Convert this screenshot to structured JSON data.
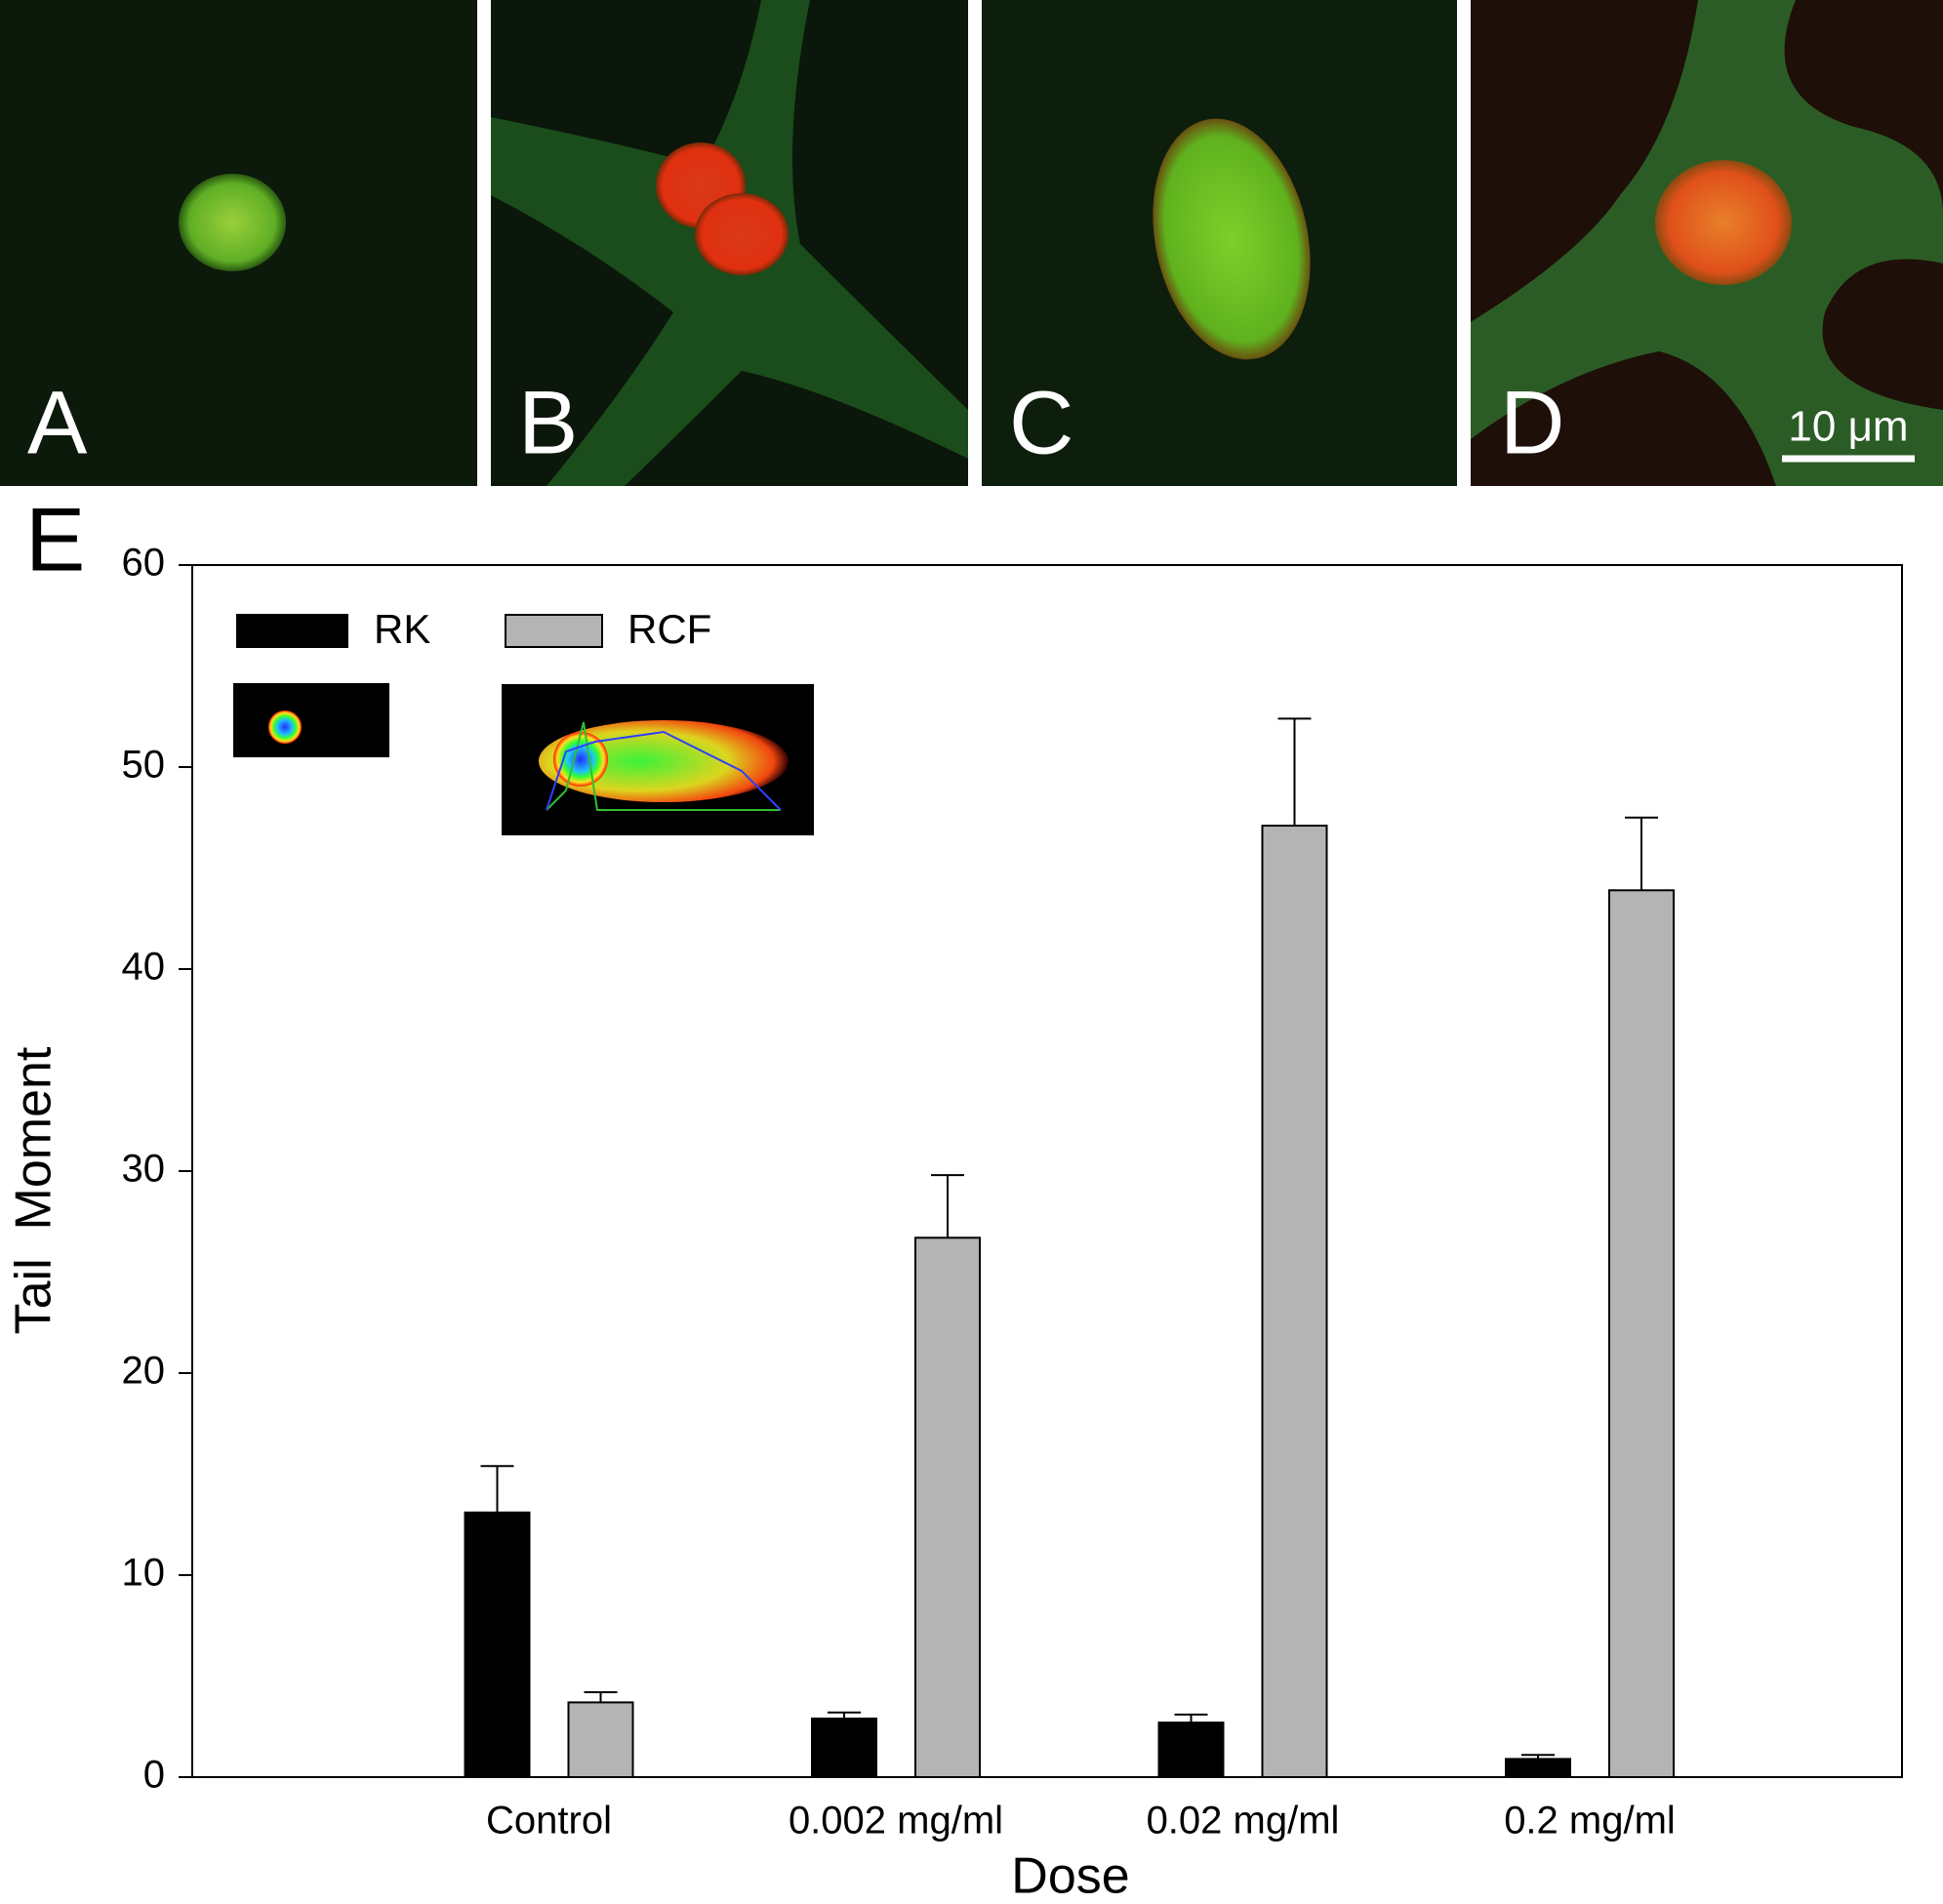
{
  "panels": [
    {
      "label": "A"
    },
    {
      "label": "B"
    },
    {
      "label": "C"
    },
    {
      "label": "D"
    }
  ],
  "scale_bar": "10 μm",
  "chart_label": "E",
  "chart_data": {
    "type": "bar",
    "x_label": "Dose",
    "y_label": "Tail  Moment",
    "categories": [
      "Control",
      "0.002 mg/ml",
      "0.02 mg/ml",
      "0.2 mg/ml"
    ],
    "series": [
      {
        "name": "RK",
        "color": "#000000",
        "values": [
          13.1,
          2.9,
          2.7,
          0.9
        ],
        "errors": [
          2.3,
          0.3,
          0.4,
          0.2
        ]
      },
      {
        "name": "RCF",
        "color": "#b4b4b4",
        "values": [
          3.7,
          26.7,
          47.1,
          43.9
        ],
        "errors": [
          0.5,
          3.1,
          5.3,
          3.6
        ]
      }
    ],
    "ylim": [
      0,
      60
    ],
    "yticks": [
      0,
      10,
      20,
      30,
      40,
      50,
      60
    ]
  }
}
